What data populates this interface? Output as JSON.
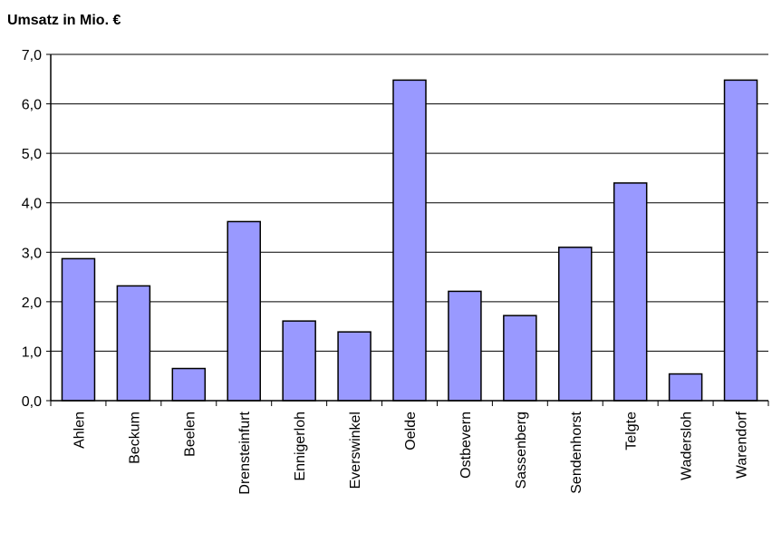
{
  "chart_data": {
    "type": "bar",
    "title": "Umsatz in Mio. €",
    "xlabel": "",
    "ylabel": "",
    "categories": [
      "Ahlen",
      "Beckum",
      "Beelen",
      "Drensteinfurt",
      "Ennigerloh",
      "Everswinkel",
      "Oelde",
      "Ostbevern",
      "Sassenberg",
      "Sendenhorst",
      "Telgte",
      "Wadersloh",
      "Warendorf"
    ],
    "values": [
      2.87,
      2.32,
      0.65,
      3.62,
      1.61,
      1.39,
      6.48,
      2.21,
      1.72,
      3.1,
      4.4,
      0.54,
      6.48
    ],
    "ylim": [
      0,
      7
    ],
    "yticks": [
      "0,0",
      "1,0",
      "2,0",
      "3,0",
      "4,0",
      "5,0",
      "6,0",
      "7,0"
    ],
    "grid": true,
    "bar_color": "#9999ff",
    "legend": "none"
  }
}
